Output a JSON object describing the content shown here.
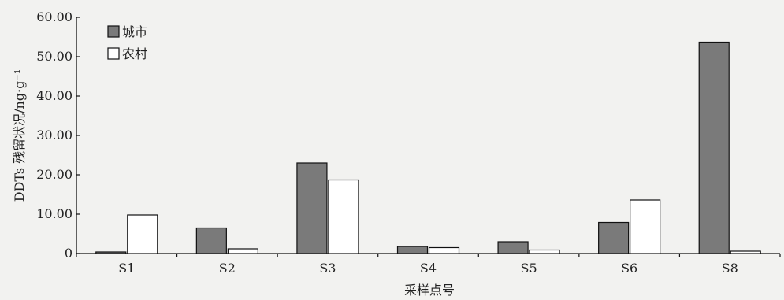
{
  "chart_data": {
    "type": "bar",
    "categories": [
      "S1",
      "S2",
      "S3",
      "S4",
      "S5",
      "S6",
      "S8"
    ],
    "series": [
      {
        "name": "城市",
        "color": "#7a7a7a",
        "values": [
          0.4,
          6.5,
          23.0,
          1.8,
          3.0,
          7.9,
          53.7
        ]
      },
      {
        "name": "农村",
        "color": "#ffffff",
        "values": [
          9.8,
          1.2,
          18.7,
          1.5,
          0.9,
          13.6,
          0.6
        ]
      }
    ],
    "title": "",
    "xlabel": "采样点号",
    "ylabel": "DDTs 残留状况/ng·g⁻¹",
    "ylim": [
      0,
      60
    ],
    "yticks": [
      "0",
      "10.00",
      "20.00",
      "30.00",
      "40.00",
      "50.00",
      "60.00"
    ],
    "legend_position": "top-left",
    "grid": false
  }
}
